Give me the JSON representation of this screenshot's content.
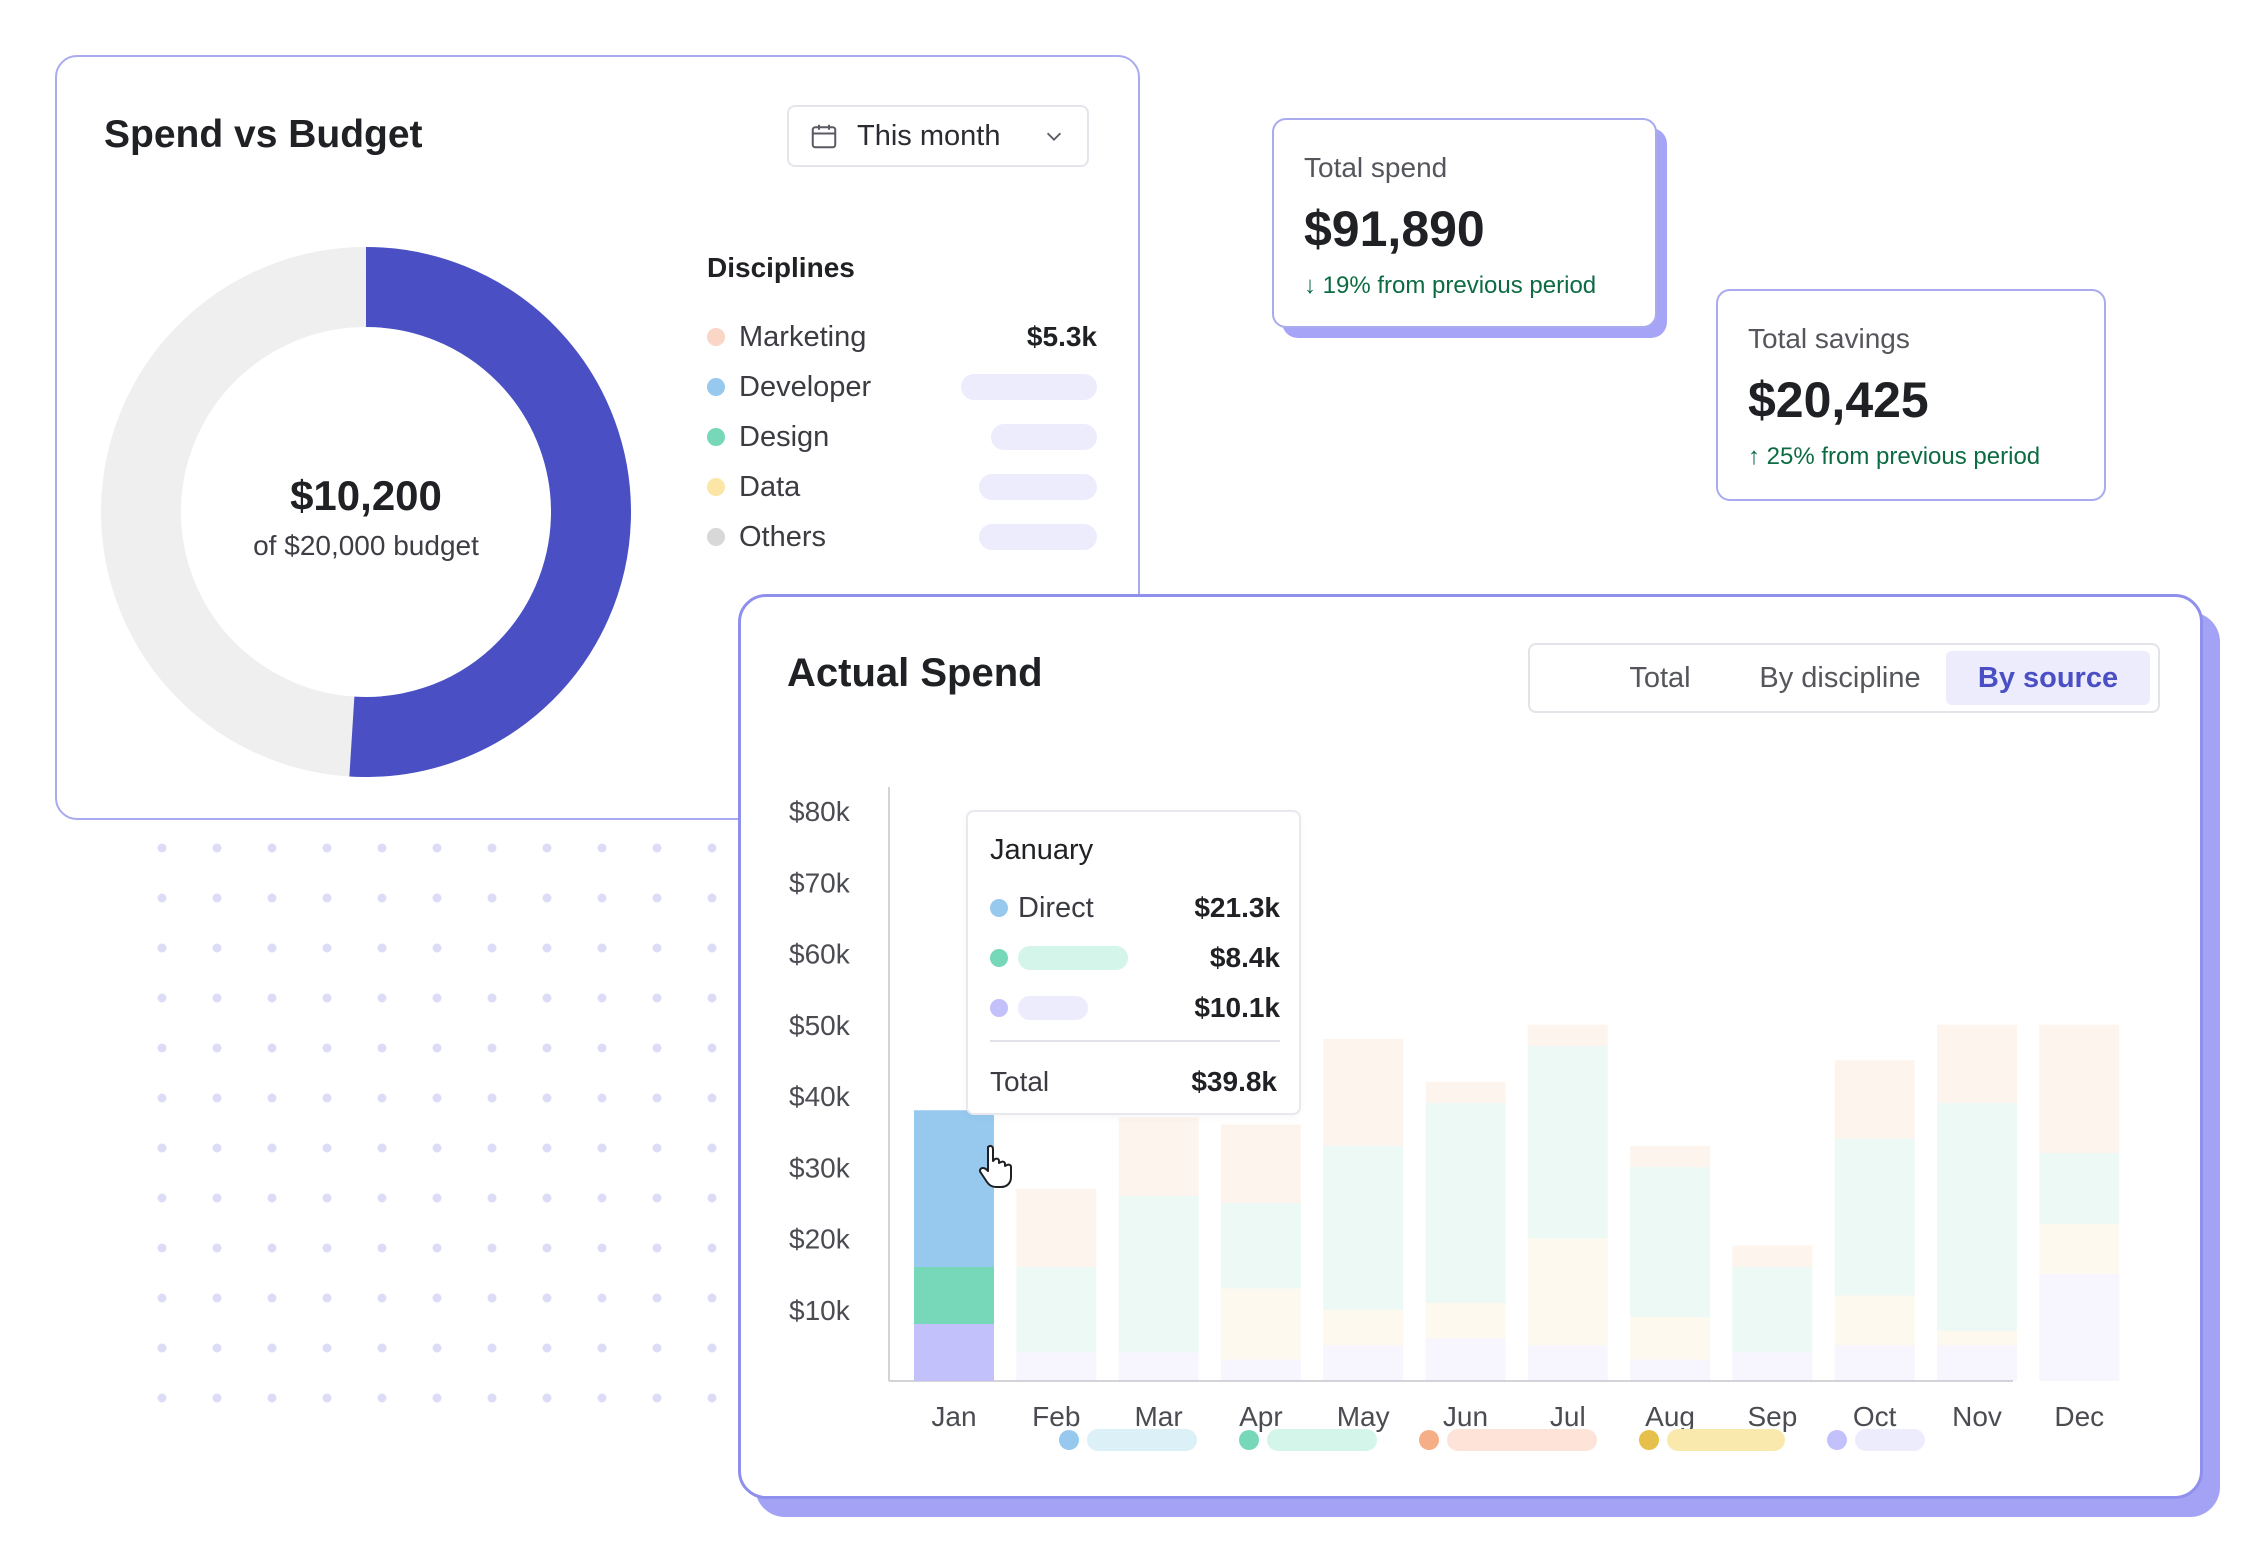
{
  "spend_vs_budget": {
    "title": "Spend vs Budget",
    "date_range": {
      "selected": "This month",
      "icon": "calendar-icon",
      "chevron": "chevron-down-icon"
    },
    "donut": {
      "spent": 10200,
      "budget": 20000,
      "amount_label": "$10,200",
      "sub_label": "of $20,000 budget",
      "spent_color": "#4a4fc4",
      "remaining_color": "#efefef"
    },
    "disciplines_title": "Disciplines",
    "disciplines": [
      {
        "name": "Marketing",
        "value": "$5.3k",
        "color": "#f9d6c6"
      },
      {
        "name": "Developer",
        "value": "",
        "color": "#97c9ef"
      },
      {
        "name": "Design",
        "value": "",
        "color": "#76d8b8"
      },
      {
        "name": "Data",
        "value": "",
        "color": "#fbe6a6"
      },
      {
        "name": "Others",
        "value": "",
        "color": "#d8d8d8"
      }
    ]
  },
  "kpis": [
    {
      "label": "Total spend",
      "value": "$91,890",
      "change": "↓ 19% from previous period",
      "direction": "down"
    },
    {
      "label": "Total savings",
      "value": "$20,425",
      "change": "↑ 25% from previous period",
      "direction": "up"
    }
  ],
  "actual_spend": {
    "title": "Actual Spend",
    "tabs": [
      {
        "label": "Total",
        "active": false
      },
      {
        "label": "By discipline",
        "active": false
      },
      {
        "label": "By source",
        "active": true
      }
    ],
    "tooltip": {
      "month": "January",
      "rows": [
        {
          "label": "Direct",
          "value": "$21.3k",
          "color": "#97c9ef"
        },
        {
          "label": "",
          "value": "$8.4k",
          "color": "#76d8b8"
        },
        {
          "label": "",
          "value": "$10.1k",
          "color": "#c3c1fb"
        }
      ],
      "total_label": "Total",
      "total_value": "$39.8k"
    },
    "legend_colors": [
      "#97c9ef",
      "#76d8b8",
      "#f6ae86",
      "#e6c04a",
      "#c3c1fb"
    ]
  },
  "chart_data": {
    "type": "bar",
    "stacked": true,
    "categories": [
      "Jan",
      "Feb",
      "Mar",
      "Apr",
      "May",
      "Jun",
      "Jul",
      "Aug",
      "Sep",
      "Oct",
      "Nov",
      "Dec"
    ],
    "y_ticks": [
      "$10k",
      "$20k",
      "$30k",
      "$40k",
      "$50k",
      "$60k",
      "$70k",
      "$80k"
    ],
    "ylim": [
      0,
      80
    ],
    "highlighted": "Jan",
    "series": [
      {
        "name": "",
        "color": "#c3c1fb",
        "values": [
          8,
          4,
          4,
          3,
          5,
          6,
          5,
          3,
          4,
          5,
          5,
          15
        ]
      },
      {
        "name": "",
        "color": "#f6d690",
        "values": [
          0,
          0,
          0,
          10,
          5,
          5,
          15,
          6,
          0,
          7,
          2,
          7
        ]
      },
      {
        "name": "",
        "color": "#76d8b8",
        "values": [
          8,
          12,
          22,
          12,
          23,
          28,
          27,
          21,
          12,
          22,
          32,
          10
        ]
      },
      {
        "name": "Direct",
        "color": "#97c9ef",
        "values": [
          22,
          0,
          0,
          0,
          0,
          0,
          0,
          0,
          0,
          0,
          0,
          0
        ]
      },
      {
        "name": "",
        "color": "#f6ae86",
        "values": [
          0,
          11,
          11,
          11,
          15,
          3,
          3,
          3,
          3,
          11,
          11,
          18
        ]
      }
    ]
  }
}
